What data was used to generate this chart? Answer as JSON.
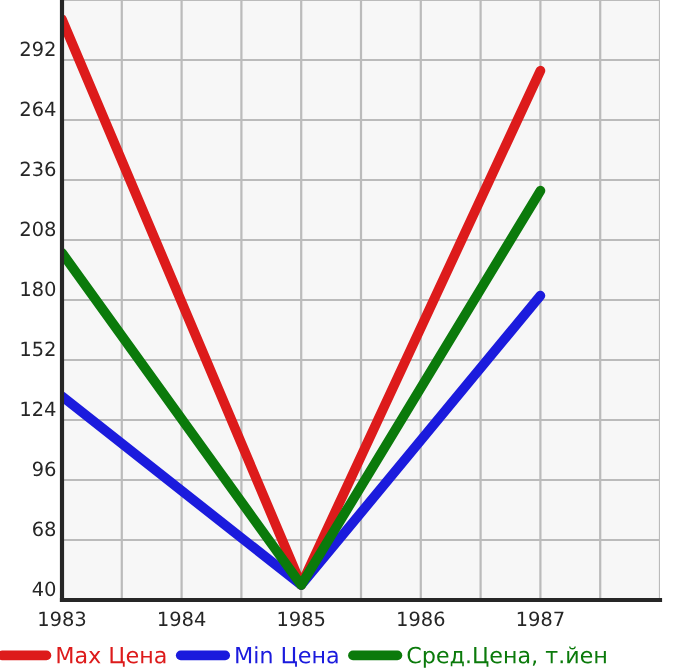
{
  "chart_data": {
    "type": "line",
    "x": [
      1983,
      1985,
      1987
    ],
    "series": [
      {
        "name": "Max Цена",
        "color": "#dd1b1b",
        "values": [
          311,
          47,
          287
        ]
      },
      {
        "name": "Min Цена",
        "color": "#1b1bdd",
        "values": [
          135,
          47,
          182
        ]
      },
      {
        "name": "Сред.Цена, т.йен",
        "color": "#0b7a0b",
        "values": [
          202,
          47,
          231
        ]
      }
    ],
    "xlim": [
      1983,
      1988
    ],
    "xticks": [
      1983,
      {
        "value": 1983.5,
        "label": null
      },
      1984,
      {
        "value": 1984.5,
        "label": null
      },
      1985,
      {
        "value": 1985.5,
        "label": null
      },
      1986,
      {
        "value": 1986.5,
        "label": null
      },
      1987,
      {
        "value": 1987.5,
        "label": null
      },
      {
        "value": 1988,
        "label": null
      }
    ],
    "ylim": [
      40,
      320
    ],
    "yticks": [
      40,
      68,
      96,
      124,
      152,
      180,
      208,
      236,
      264,
      292,
      {
        "value": 320,
        "label": null
      }
    ],
    "grid": true,
    "legend": "bottom",
    "marker": "none",
    "line_style": "solid"
  }
}
